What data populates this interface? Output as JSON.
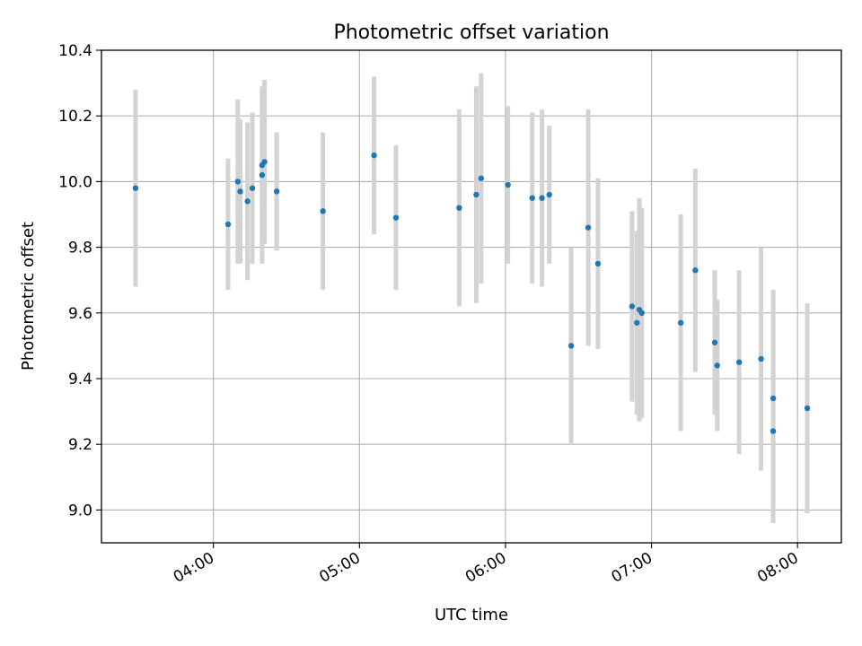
{
  "chart_data": {
    "type": "scatter",
    "title": "Photometric offset variation",
    "xlabel": "UTC time",
    "ylabel": "Photometric offset",
    "xlim": [
      "03:14",
      "08:18"
    ],
    "ylim": [
      8.9,
      10.4
    ],
    "xticks": [
      "04:00",
      "05:00",
      "06:00",
      "07:00",
      "08:00"
    ],
    "yticks": [
      9.0,
      9.2,
      9.4,
      9.6,
      9.8,
      10.0,
      10.2,
      10.4
    ],
    "grid": true,
    "colors": {
      "point": "#1f77b4",
      "errorbar": "#d3d3d3",
      "grid": "#b0b0b0"
    },
    "points": [
      {
        "x": "03:28",
        "y": 9.98,
        "err": 0.3
      },
      {
        "x": "04:06",
        "y": 9.87,
        "err": 0.2
      },
      {
        "x": "04:10",
        "y": 10.0,
        "err": 0.25
      },
      {
        "x": "04:11",
        "y": 9.97,
        "err": 0.22
      },
      {
        "x": "04:14",
        "y": 9.94,
        "err": 0.24
      },
      {
        "x": "04:16",
        "y": 9.98,
        "err": 0.23
      },
      {
        "x": "04:20",
        "y": 10.02,
        "err": 0.27
      },
      {
        "x": "04:20",
        "y": 10.05,
        "err": 0.23
      },
      {
        "x": "04:21",
        "y": 10.06,
        "err": 0.25
      },
      {
        "x": "04:26",
        "y": 9.97,
        "err": 0.18
      },
      {
        "x": "04:45",
        "y": 9.91,
        "err": 0.24
      },
      {
        "x": "05:06",
        "y": 10.08,
        "err": 0.24
      },
      {
        "x": "05:15",
        "y": 9.89,
        "err": 0.22
      },
      {
        "x": "05:41",
        "y": 9.92,
        "err": 0.3
      },
      {
        "x": "05:48",
        "y": 9.96,
        "err": 0.33
      },
      {
        "x": "05:50",
        "y": 10.01,
        "err": 0.32
      },
      {
        "x": "06:01",
        "y": 9.99,
        "err": 0.24
      },
      {
        "x": "06:11",
        "y": 9.95,
        "err": 0.26
      },
      {
        "x": "06:15",
        "y": 9.95,
        "err": 0.27
      },
      {
        "x": "06:18",
        "y": 9.96,
        "err": 0.21
      },
      {
        "x": "06:27",
        "y": 9.5,
        "err": 0.3
      },
      {
        "x": "06:34",
        "y": 9.86,
        "err": 0.36
      },
      {
        "x": "06:38",
        "y": 9.75,
        "err": 0.26
      },
      {
        "x": "06:52",
        "y": 9.62,
        "err": 0.29
      },
      {
        "x": "06:54",
        "y": 9.57,
        "err": 0.28
      },
      {
        "x": "06:55",
        "y": 9.61,
        "err": 0.34
      },
      {
        "x": "06:56",
        "y": 9.6,
        "err": 0.32
      },
      {
        "x": "07:12",
        "y": 9.57,
        "err": 0.33
      },
      {
        "x": "07:18",
        "y": 9.73,
        "err": 0.31
      },
      {
        "x": "07:26",
        "y": 9.51,
        "err": 0.22
      },
      {
        "x": "07:27",
        "y": 9.44,
        "err": 0.2
      },
      {
        "x": "07:36",
        "y": 9.45,
        "err": 0.28
      },
      {
        "x": "07:45",
        "y": 9.46,
        "err": 0.34
      },
      {
        "x": "07:50",
        "y": 9.34,
        "err": 0.33
      },
      {
        "x": "07:50",
        "y": 9.24,
        "err": 0.28
      },
      {
        "x": "08:04",
        "y": 9.31,
        "err": 0.32
      }
    ]
  }
}
